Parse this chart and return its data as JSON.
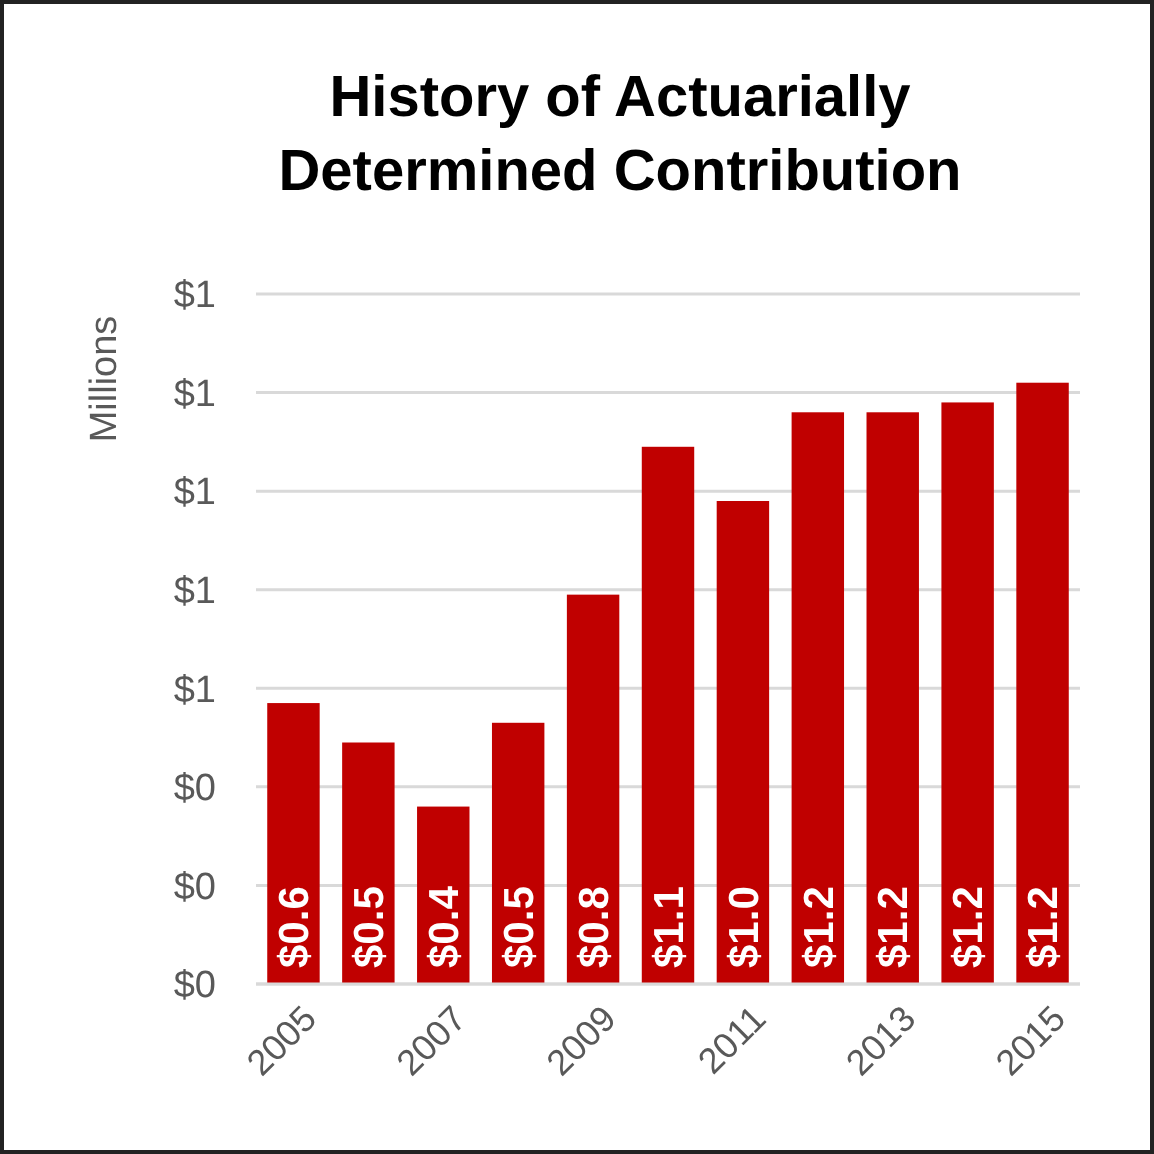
{
  "chart_data": {
    "type": "bar",
    "title": "History of Actuarially Determined Contribution",
    "ylabel": "Millions",
    "categories": [
      "2005",
      null,
      "2007",
      null,
      "2009",
      null,
      "2011",
      null,
      "2013",
      null,
      "2015"
    ],
    "values": [
      0.57,
      0.49,
      0.36,
      0.53,
      0.79,
      1.09,
      0.98,
      1.16,
      1.16,
      1.18,
      1.22
    ],
    "value_labels": [
      "$0.6",
      "$0.5",
      "$0.4",
      "$0.5",
      "$0.8",
      "$1.1",
      "$1.0",
      "$1.2",
      "$1.2",
      "$1.2",
      "$1.2"
    ],
    "color": "#c00000",
    "ylim": [
      0,
      1.4
    ],
    "yticks": [
      {
        "value": 0,
        "label": "$0"
      },
      {
        "value": 0.2,
        "label": "$0"
      },
      {
        "value": 0.4,
        "label": "$0"
      },
      {
        "value": 0.6,
        "label": "$1"
      },
      {
        "value": 0.8,
        "label": "$1"
      },
      {
        "value": 1.0,
        "label": "$1"
      },
      {
        "value": 1.2,
        "label": "$1"
      },
      {
        "value": 1.4,
        "label": "$1"
      }
    ],
    "grid": true
  }
}
